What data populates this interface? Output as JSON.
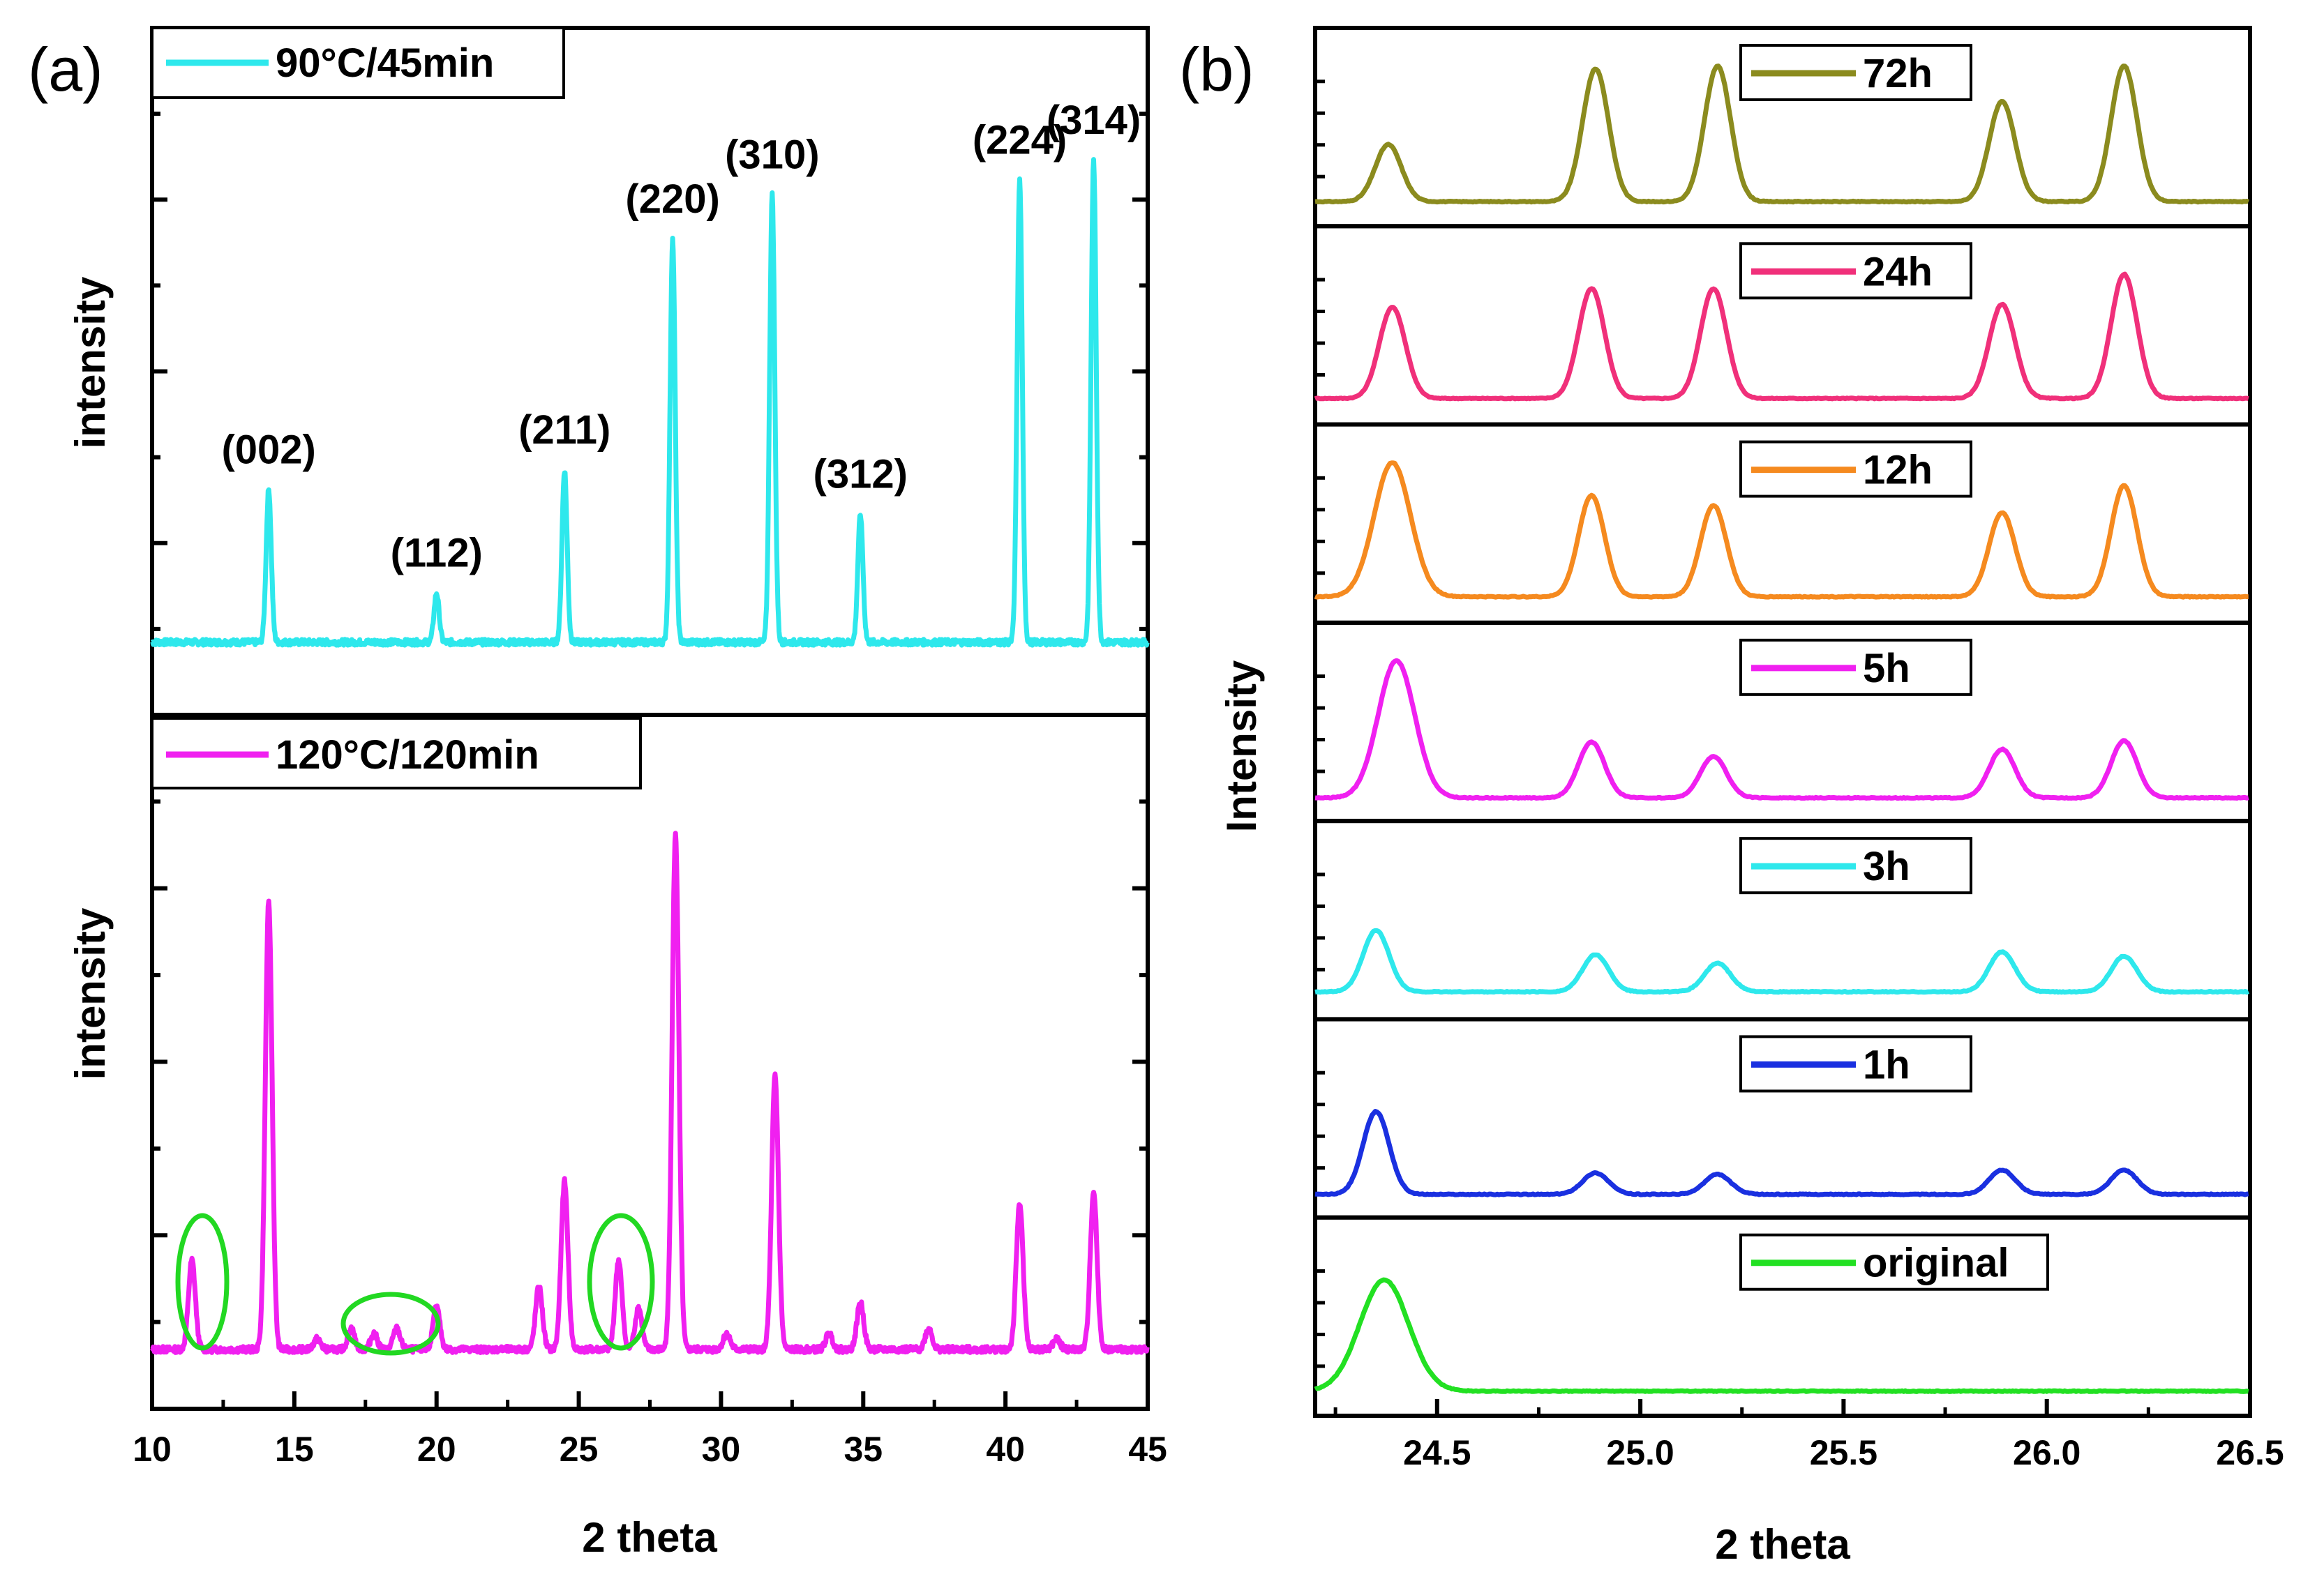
{
  "chart_data": [
    {
      "panel": "(a)",
      "type": "line",
      "xlabel": "2 theta",
      "ylabel": "intensity",
      "xlim": [
        10,
        45
      ],
      "xticks": [
        10,
        15,
        20,
        25,
        30,
        35,
        40,
        45
      ],
      "subplots": [
        {
          "legend": "90°C/45min",
          "color": "#2ee8ec",
          "ylabel": "intensity",
          "ylim": [
            0,
            1.05
          ],
          "baseline": 0.02,
          "peaks": [
            {
              "x": 14.1,
              "y": 0.33,
              "label": "(002)"
            },
            {
              "x": 20.0,
              "y": 0.12,
              "label": "(112)"
            },
            {
              "x": 24.5,
              "y": 0.37,
              "label": "(211)"
            },
            {
              "x": 28.3,
              "y": 0.84,
              "label": "(220)"
            },
            {
              "x": 31.8,
              "y": 0.93,
              "label": "(310)"
            },
            {
              "x": 34.9,
              "y": 0.28,
              "label": "(312)"
            },
            {
              "x": 40.5,
              "y": 0.96,
              "label": "(224)"
            },
            {
              "x": 43.1,
              "y": 1.0,
              "label": "(314)"
            }
          ]
        },
        {
          "legend": "120°C/120min",
          "color": "#f020f0",
          "ylabel": "intensity",
          "ylim": [
            0,
            1.05
          ],
          "baseline": 0.02,
          "peaks": [
            {
              "x": 11.4,
              "y": 0.19
            },
            {
              "x": 14.1,
              "y": 0.87
            },
            {
              "x": 15.8,
              "y": 0.04
            },
            {
              "x": 17.0,
              "y": 0.06
            },
            {
              "x": 17.8,
              "y": 0.05
            },
            {
              "x": 18.6,
              "y": 0.06
            },
            {
              "x": 20.0,
              "y": 0.1
            },
            {
              "x": 23.6,
              "y": 0.14
            },
            {
              "x": 24.5,
              "y": 0.34
            },
            {
              "x": 26.4,
              "y": 0.19
            },
            {
              "x": 27.1,
              "y": 0.1
            },
            {
              "x": 28.4,
              "y": 1.0
            },
            {
              "x": 30.2,
              "y": 0.05
            },
            {
              "x": 31.9,
              "y": 0.54
            },
            {
              "x": 33.8,
              "y": 0.05
            },
            {
              "x": 34.9,
              "y": 0.11
            },
            {
              "x": 37.3,
              "y": 0.06
            },
            {
              "x": 40.5,
              "y": 0.3
            },
            {
              "x": 41.8,
              "y": 0.04
            },
            {
              "x": 43.1,
              "y": 0.32
            }
          ],
          "annotations": [
            "green ellipse near 11.5",
            "green ellipse near 18.5",
            "green ellipse near 26.5"
          ]
        }
      ]
    },
    {
      "panel": "(b)",
      "type": "line",
      "xlabel": "2 theta",
      "ylabel": "Intensity",
      "xlim": [
        24.2,
        26.5
      ],
      "xticks": [
        "24.5",
        "25.0",
        "25.5",
        "26.0",
        "26.5"
      ],
      "xtick_values": [
        24.5,
        25.0,
        25.5,
        26.0,
        26.5
      ],
      "series": [
        {
          "name": "72h",
          "color": "#8b8b1e",
          "baseline": 0.05,
          "peaks": [
            {
              "x": 24.38,
              "y": 0.45
            },
            {
              "x": 24.89,
              "y": 0.98
            },
            {
              "x": 25.19,
              "y": 1.0
            },
            {
              "x": 25.89,
              "y": 0.75
            },
            {
              "x": 26.19,
              "y": 1.0
            }
          ]
        },
        {
          "name": "24h",
          "color": "#f0307a",
          "baseline": 0.06,
          "peaks": [
            {
              "x": 24.39,
              "y": 0.7
            },
            {
              "x": 24.88,
              "y": 0.83
            },
            {
              "x": 25.18,
              "y": 0.83
            },
            {
              "x": 25.89,
              "y": 0.72
            },
            {
              "x": 26.19,
              "y": 0.93
            }
          ]
        },
        {
          "name": "12h",
          "color": "#f58a1f",
          "baseline": 0.06,
          "peaks": [
            {
              "x": 24.39,
              "y": 1.0
            },
            {
              "x": 24.88,
              "y": 0.77
            },
            {
              "x": 25.18,
              "y": 0.7
            },
            {
              "x": 25.89,
              "y": 0.65
            },
            {
              "x": 26.19,
              "y": 0.84
            }
          ]
        },
        {
          "name": "5h",
          "color": "#f020f0",
          "baseline": 0.04,
          "peaks": [
            {
              "x": 24.4,
              "y": 1.0
            },
            {
              "x": 24.88,
              "y": 0.43
            },
            {
              "x": 25.18,
              "y": 0.33
            },
            {
              "x": 25.89,
              "y": 0.38
            },
            {
              "x": 26.19,
              "y": 0.44
            }
          ]
        },
        {
          "name": "3h",
          "color": "#2ee8ec",
          "baseline": 0.07,
          "peaks": [
            {
              "x": 24.35,
              "y": 0.5
            },
            {
              "x": 24.89,
              "y": 0.33
            },
            {
              "x": 25.19,
              "y": 0.27
            },
            {
              "x": 25.89,
              "y": 0.35
            },
            {
              "x": 26.19,
              "y": 0.32
            }
          ]
        },
        {
          "name": "1h",
          "color": "#1a30e0",
          "baseline": 0.04,
          "peaks": [
            {
              "x": 24.35,
              "y": 0.62
            },
            {
              "x": 24.89,
              "y": 0.19
            },
            {
              "x": 25.19,
              "y": 0.18
            },
            {
              "x": 25.89,
              "y": 0.21
            },
            {
              "x": 26.19,
              "y": 0.21
            }
          ]
        },
        {
          "name": "original",
          "color": "#22e022",
          "baseline": 0.05,
          "peaks": [
            {
              "x": 24.37,
              "y": 0.83
            }
          ]
        }
      ]
    }
  ]
}
